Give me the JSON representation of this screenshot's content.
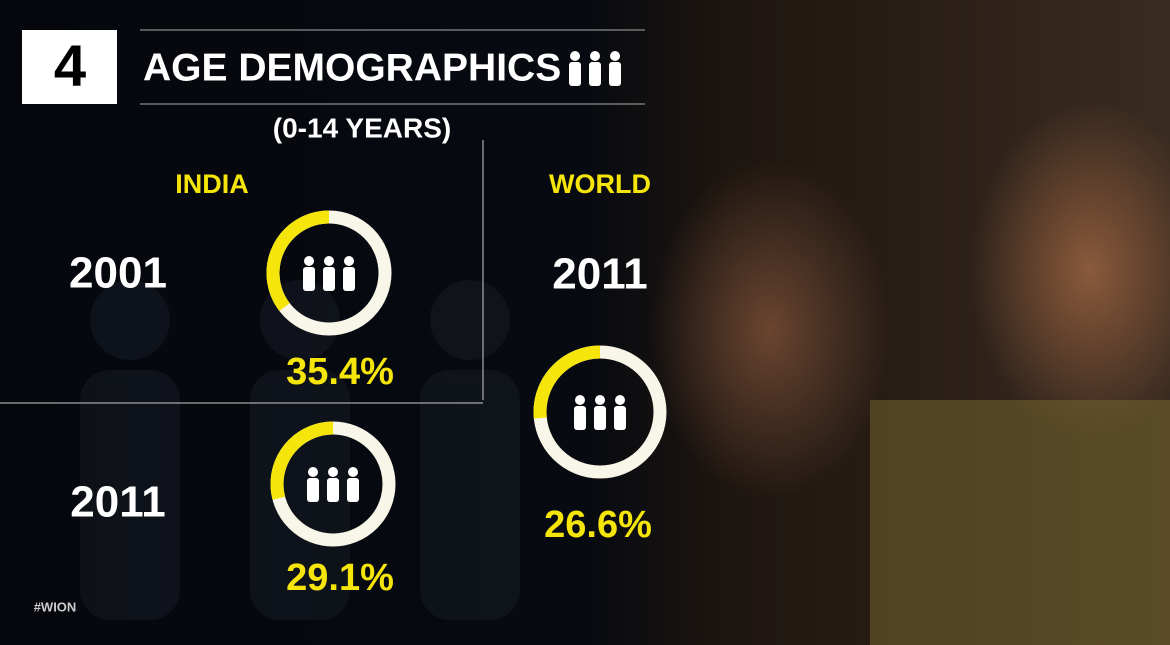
{
  "badge": "4",
  "title": "AGE DEMOGRAPHICS",
  "subtitle": "(0-14 YEARS)",
  "india": {
    "label": "INDIA",
    "entries": [
      {
        "year": "2001",
        "value": 35.4,
        "value_label": "35.4%"
      },
      {
        "year": "2011",
        "value": 29.1,
        "value_label": "29.1%"
      }
    ]
  },
  "world": {
    "label": "WORLD",
    "entries": [
      {
        "year": "2011",
        "value": 26.6,
        "value_label": "26.6%"
      }
    ]
  },
  "tag": "#WION"
}
